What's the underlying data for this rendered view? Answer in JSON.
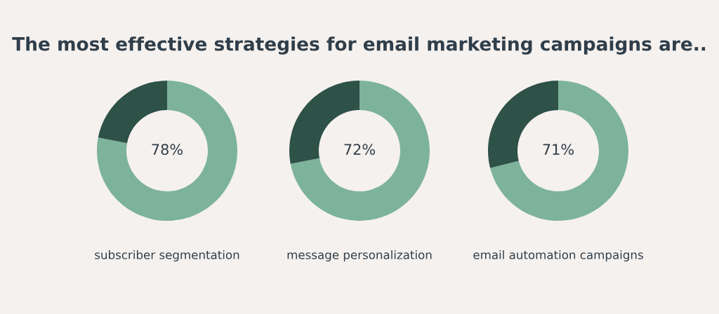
{
  "chart_data": [
    {
      "type": "donut",
      "title": "The most effective strategies for email marketing campaigns are..",
      "xlabel": "subscriber segmentation",
      "categories": [
        null,
        null
      ],
      "values": [
        78,
        22
      ],
      "colors": [
        "#7db39a",
        "#2e5148"
      ],
      "value_labels": [
        "78%",
        null
      ]
    },
    {
      "type": "donut",
      "xlabel": "message personalization",
      "categories": [
        null,
        null
      ],
      "values": [
        72,
        28
      ],
      "colors": [
        "#7db39a",
        "#2e5148"
      ],
      "value_labels": [
        "72%",
        null
      ]
    },
    {
      "type": "donut",
      "xlabel": "email automation campaigns",
      "categories": [
        null,
        null
      ],
      "values": [
        71,
        29
      ],
      "colors": [
        "#7db39a",
        "#2e5148"
      ],
      "value_labels": [
        "71%",
        null
      ]
    }
  ]
}
